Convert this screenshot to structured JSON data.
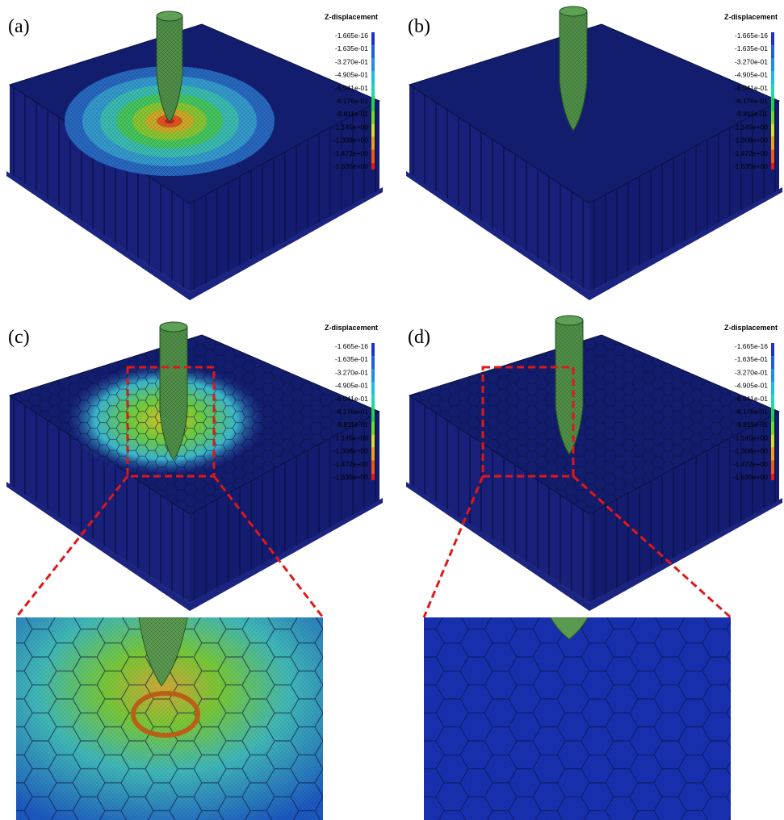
{
  "panels": [
    {
      "label": "(a)",
      "legend": {
        "title": "Z-displacement",
        "labels": [
          "-1.665e-16",
          "-1.635e-01",
          "-3.270e-01",
          "-4.905e-01",
          "-6.541e-01",
          "-8.176e-01",
          "-9.811e-01",
          "-1.145e+00",
          "-1.308e+00",
          "-1.472e+00",
          "-1.635e+00"
        ]
      }
    },
    {
      "label": "(b)",
      "legend": {
        "title": "Z-displacement",
        "labels": [
          "-1.665e-16",
          "-1.635e-01",
          "-3.270e-01",
          "-4.905e-01",
          "-6.541e-01",
          "-8.176e-01",
          "-9.811e-01",
          "-1.145e+00",
          "-1.308e+00",
          "-1.472e+00",
          "-1.635e+00"
        ]
      }
    },
    {
      "label": "(c)",
      "legend": {
        "title": "Z-displacement",
        "labels": [
          "-1.665e-16",
          "-1.635e-01",
          "-3.270e-01",
          "-4.905e-01",
          "-6.541e-01",
          "-8.176e-01",
          "-9.811e-01",
          "-1.145e+00",
          "-1.308e+00",
          "-1.472e+00",
          "-1.635e+00"
        ]
      }
    },
    {
      "label": "(d)",
      "legend": {
        "title": "Z-displacement",
        "labels": [
          "-1.665e-16",
          "-1.635e-01",
          "-3.270e-01",
          "-4.905e-01",
          "-6.541e-01",
          "-8.176e-01",
          "-9.811e-01",
          "-1.145e+00",
          "-1.308e+00",
          "-1.472e+00",
          "-1.635e+00"
        ]
      }
    }
  ],
  "colorbar": [
    "#1f2fd0",
    "#1e5fe0",
    "#1f8fe6",
    "#1fbde0",
    "#1fd6b0",
    "#20d050",
    "#70dd20",
    "#d8e020",
    "#f0a010",
    "#f05a10",
    "#e81a10"
  ]
}
